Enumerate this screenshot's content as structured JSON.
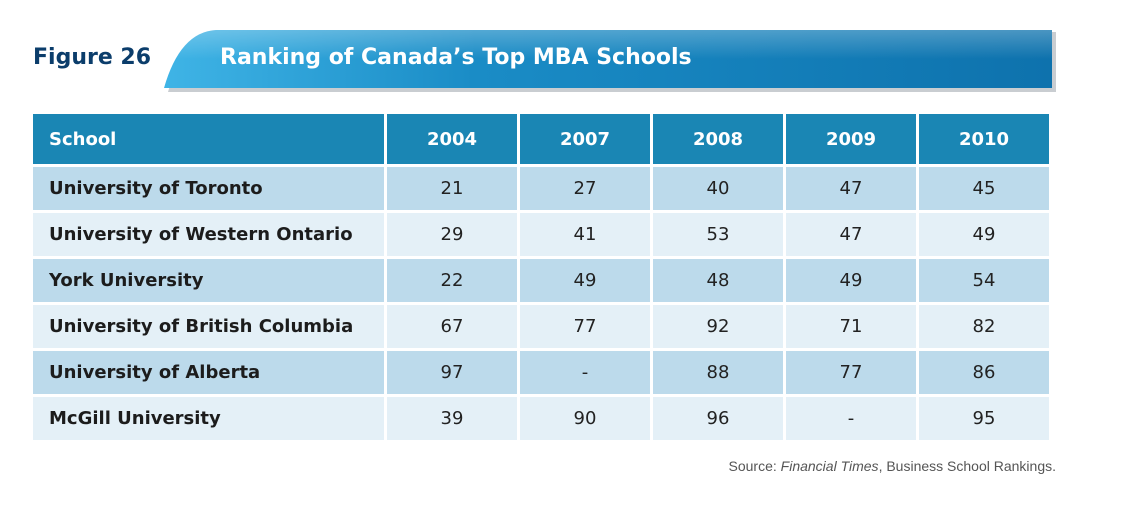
{
  "figure_label": "Figure 26",
  "banner_title": "Ranking of Canada’s Top MBA Schools",
  "source": {
    "prefix": "Source: ",
    "publication": "Financial Times",
    "suffix": ", Business School Rankings."
  },
  "colors": {
    "header_bg": "#1a86b4",
    "row_odd_bg": "#bcdaeb",
    "row_even_bg": "#e4f0f7",
    "banner_bg": "#1a8cc6",
    "figure_label": "#0b3d6b"
  },
  "chart_data": {
    "type": "table",
    "title": "Ranking of Canada’s Top MBA Schools",
    "columns": [
      "School",
      "2004",
      "2007",
      "2008",
      "2009",
      "2010"
    ],
    "rows": [
      {
        "school": "University of Toronto",
        "values": [
          "21",
          "27",
          "40",
          "47",
          "45"
        ]
      },
      {
        "school": "University of Western Ontario",
        "values": [
          "29",
          "41",
          "53",
          "47",
          "49"
        ]
      },
      {
        "school": "York University",
        "values": [
          "22",
          "49",
          "48",
          "49",
          "54"
        ]
      },
      {
        "school": "University of British Columbia",
        "values": [
          "67",
          "77",
          "92",
          "71",
          "82"
        ]
      },
      {
        "school": "University of Alberta",
        "values": [
          "97",
          "-",
          "88",
          "77",
          "86"
        ]
      },
      {
        "school": "McGill University",
        "values": [
          "39",
          "90",
          "96",
          "-",
          "95"
        ]
      }
    ]
  }
}
